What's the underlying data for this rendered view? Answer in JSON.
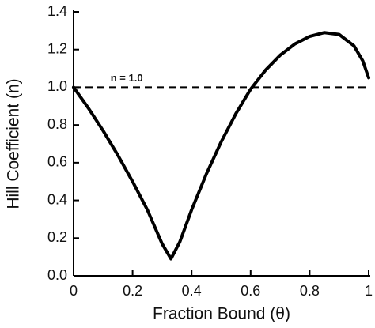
{
  "chart_data": {
    "type": "line",
    "x_label": "Fraction Bound (θ)",
    "y_label": "Hill Coefficient (n)",
    "x": [
      0,
      0.05,
      0.1,
      0.15,
      0.2,
      0.25,
      0.3,
      0.33,
      0.36,
      0.4,
      0.45,
      0.5,
      0.55,
      0.6,
      0.65,
      0.7,
      0.75,
      0.8,
      0.85,
      0.9,
      0.95,
      0.98,
      1.0
    ],
    "series": [
      {
        "color": "#000000",
        "values": [
          1.0,
          0.89,
          0.77,
          0.64,
          0.5,
          0.35,
          0.17,
          0.09,
          0.18,
          0.35,
          0.54,
          0.71,
          0.86,
          0.99,
          1.09,
          1.17,
          1.23,
          1.27,
          1.29,
          1.28,
          1.22,
          1.14,
          1.05
        ]
      }
    ],
    "reference_line": {
      "value": 1,
      "label": "n = 1.0"
    },
    "xlim": [
      0,
      1
    ],
    "xticks": [
      0,
      0.2,
      0.4,
      0.6,
      0.8,
      1
    ],
    "ylim": [
      0,
      1.4
    ],
    "yticks": [
      {
        "value": 0,
        "label": "0.0"
      },
      0.2,
      0.4,
      0.6,
      0.8,
      {
        "value": 1,
        "label": "1.0"
      },
      1.2,
      1.4
    ]
  }
}
